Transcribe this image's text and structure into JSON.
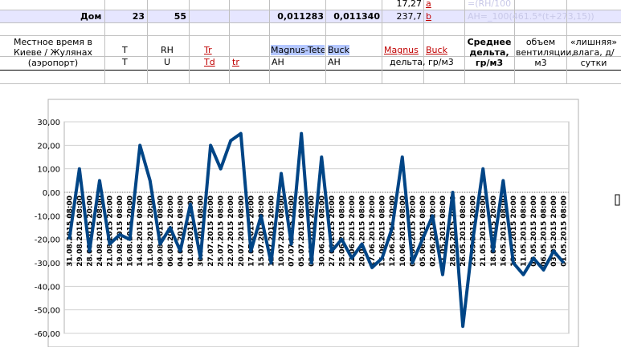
{
  "sheet": {
    "row1": {
      "value": "17,27",
      "ref": "a",
      "formula": "=(RH/100"
    },
    "row2": {
      "label": "Дом",
      "t": "23",
      "rh": "55",
      "magnus": "0,011283",
      "buck": "0,011340",
      "value": "237,7",
      "ref": "b",
      "formula": "AH=_100(461.5*(t+273,15))"
    },
    "header": [
      {
        "top": "Местное время в Киеве / Жулянах (аэропорт)"
      },
      {
        "top": "T",
        "bottom": "T"
      },
      {
        "top": "RH",
        "bottom": "U"
      },
      {
        "top": "Tr",
        "bottom": "Td"
      },
      {
        "bottom": "tr"
      },
      {
        "top": "Magnus-Tete",
        "bottom": "AH"
      },
      {
        "top": "Buck",
        "bottom": "AH"
      },
      {
        "top": "Magnus"
      },
      {
        "top": "Buck",
        "bottom": "дельта, гр/м3"
      },
      {
        "top": "Среднее дельта, гр/м3"
      },
      {
        "top": "объем вентиляции, м3"
      },
      {
        "top": "«лишняя» влага, д/сутки"
      }
    ]
  },
  "chart_data": {
    "type": "line",
    "color": "#004586",
    "grid": true,
    "ylim": [
      -60,
      30
    ],
    "yticks": [
      {
        "value": -60,
        "label": "-60,00"
      },
      {
        "value": -50,
        "label": "-50,00"
      },
      {
        "value": -40,
        "label": "-40,00"
      },
      {
        "value": -30,
        "label": "-30,00"
      },
      {
        "value": -20,
        "label": "-20,00"
      },
      {
        "value": -10,
        "label": "-10,00"
      },
      {
        "value": 0,
        "label": "0,00"
      },
      {
        "value": 10,
        "label": "10,00"
      },
      {
        "value": 20,
        "label": "20,00"
      },
      {
        "value": 30,
        "label": "30,00"
      }
    ],
    "categories": [
      "31.08.2015 08:00",
      "29.08.2015 08:00",
      "28.08.2015 20:00",
      "24.08.2015 08:00",
      "21.08.2015 20:00",
      "19.08.2015 08:00",
      "16.08.2015 20:00",
      "14.08.2015 08:00",
      "11.08.2015 20:00",
      "09.08.2015 08:00",
      "06.08.2015 20:00",
      "04.08.2015 08:00",
      "01.08.2015 20:00",
      "30.07.2015 08:00",
      "27.07.2015 20:00",
      "25.07.2015 08:00",
      "22.07.2015 20:00",
      "20.07.2015 08:00",
      "17.07.2015 20:00",
      "15.07.2015 08:00",
      "12.07.2015 20:00",
      "10.07.2015 08:00",
      "07.07.2015 20:00",
      "05.07.2015 08:00",
      "02.07.2015 20:00",
      "30.06.2015 08:00",
      "27.06.2015 20:00",
      "25.06.2015 08:00",
      "22.06.2015 20:00",
      "20.06.2015 08:00",
      "17.06.2015 20:00",
      "15.06.2015 08:00",
      "12.06.2015 20:00",
      "10.06.2015 08:00",
      "07.06.2015 20:00",
      "05.06.2015 08:00",
      "02.06.2015 20:00",
      "31.05.2015 08:00",
      "28.05.2015 20:00",
      "26.05.2015 08:00",
      "23.05.2015 20:00",
      "21.05.2015 08:00",
      "18.05.2015 20:00",
      "16.05.2015 08:00",
      "13.05.2015 20:00",
      "11.05.2015 08:00",
      "08.05.2015 20:00",
      "06.05.2015 08:00",
      "03.05.2015 20:00",
      "01.05.2015 08:00"
    ],
    "values": [
      -20,
      10,
      -25,
      5,
      -22,
      -18,
      -20,
      20,
      5,
      -22,
      -15,
      -25,
      -5,
      -28,
      20,
      10,
      22,
      25,
      -25,
      -10,
      -30,
      8,
      -22,
      25,
      -30,
      15,
      -25,
      -20,
      -28,
      -22,
      -32,
      -28,
      -15,
      15,
      -30,
      -20,
      -10,
      -35,
      0,
      -57,
      -20,
      10,
      -25,
      5,
      -30,
      -35,
      -28,
      -33,
      -25,
      -30
    ]
  }
}
